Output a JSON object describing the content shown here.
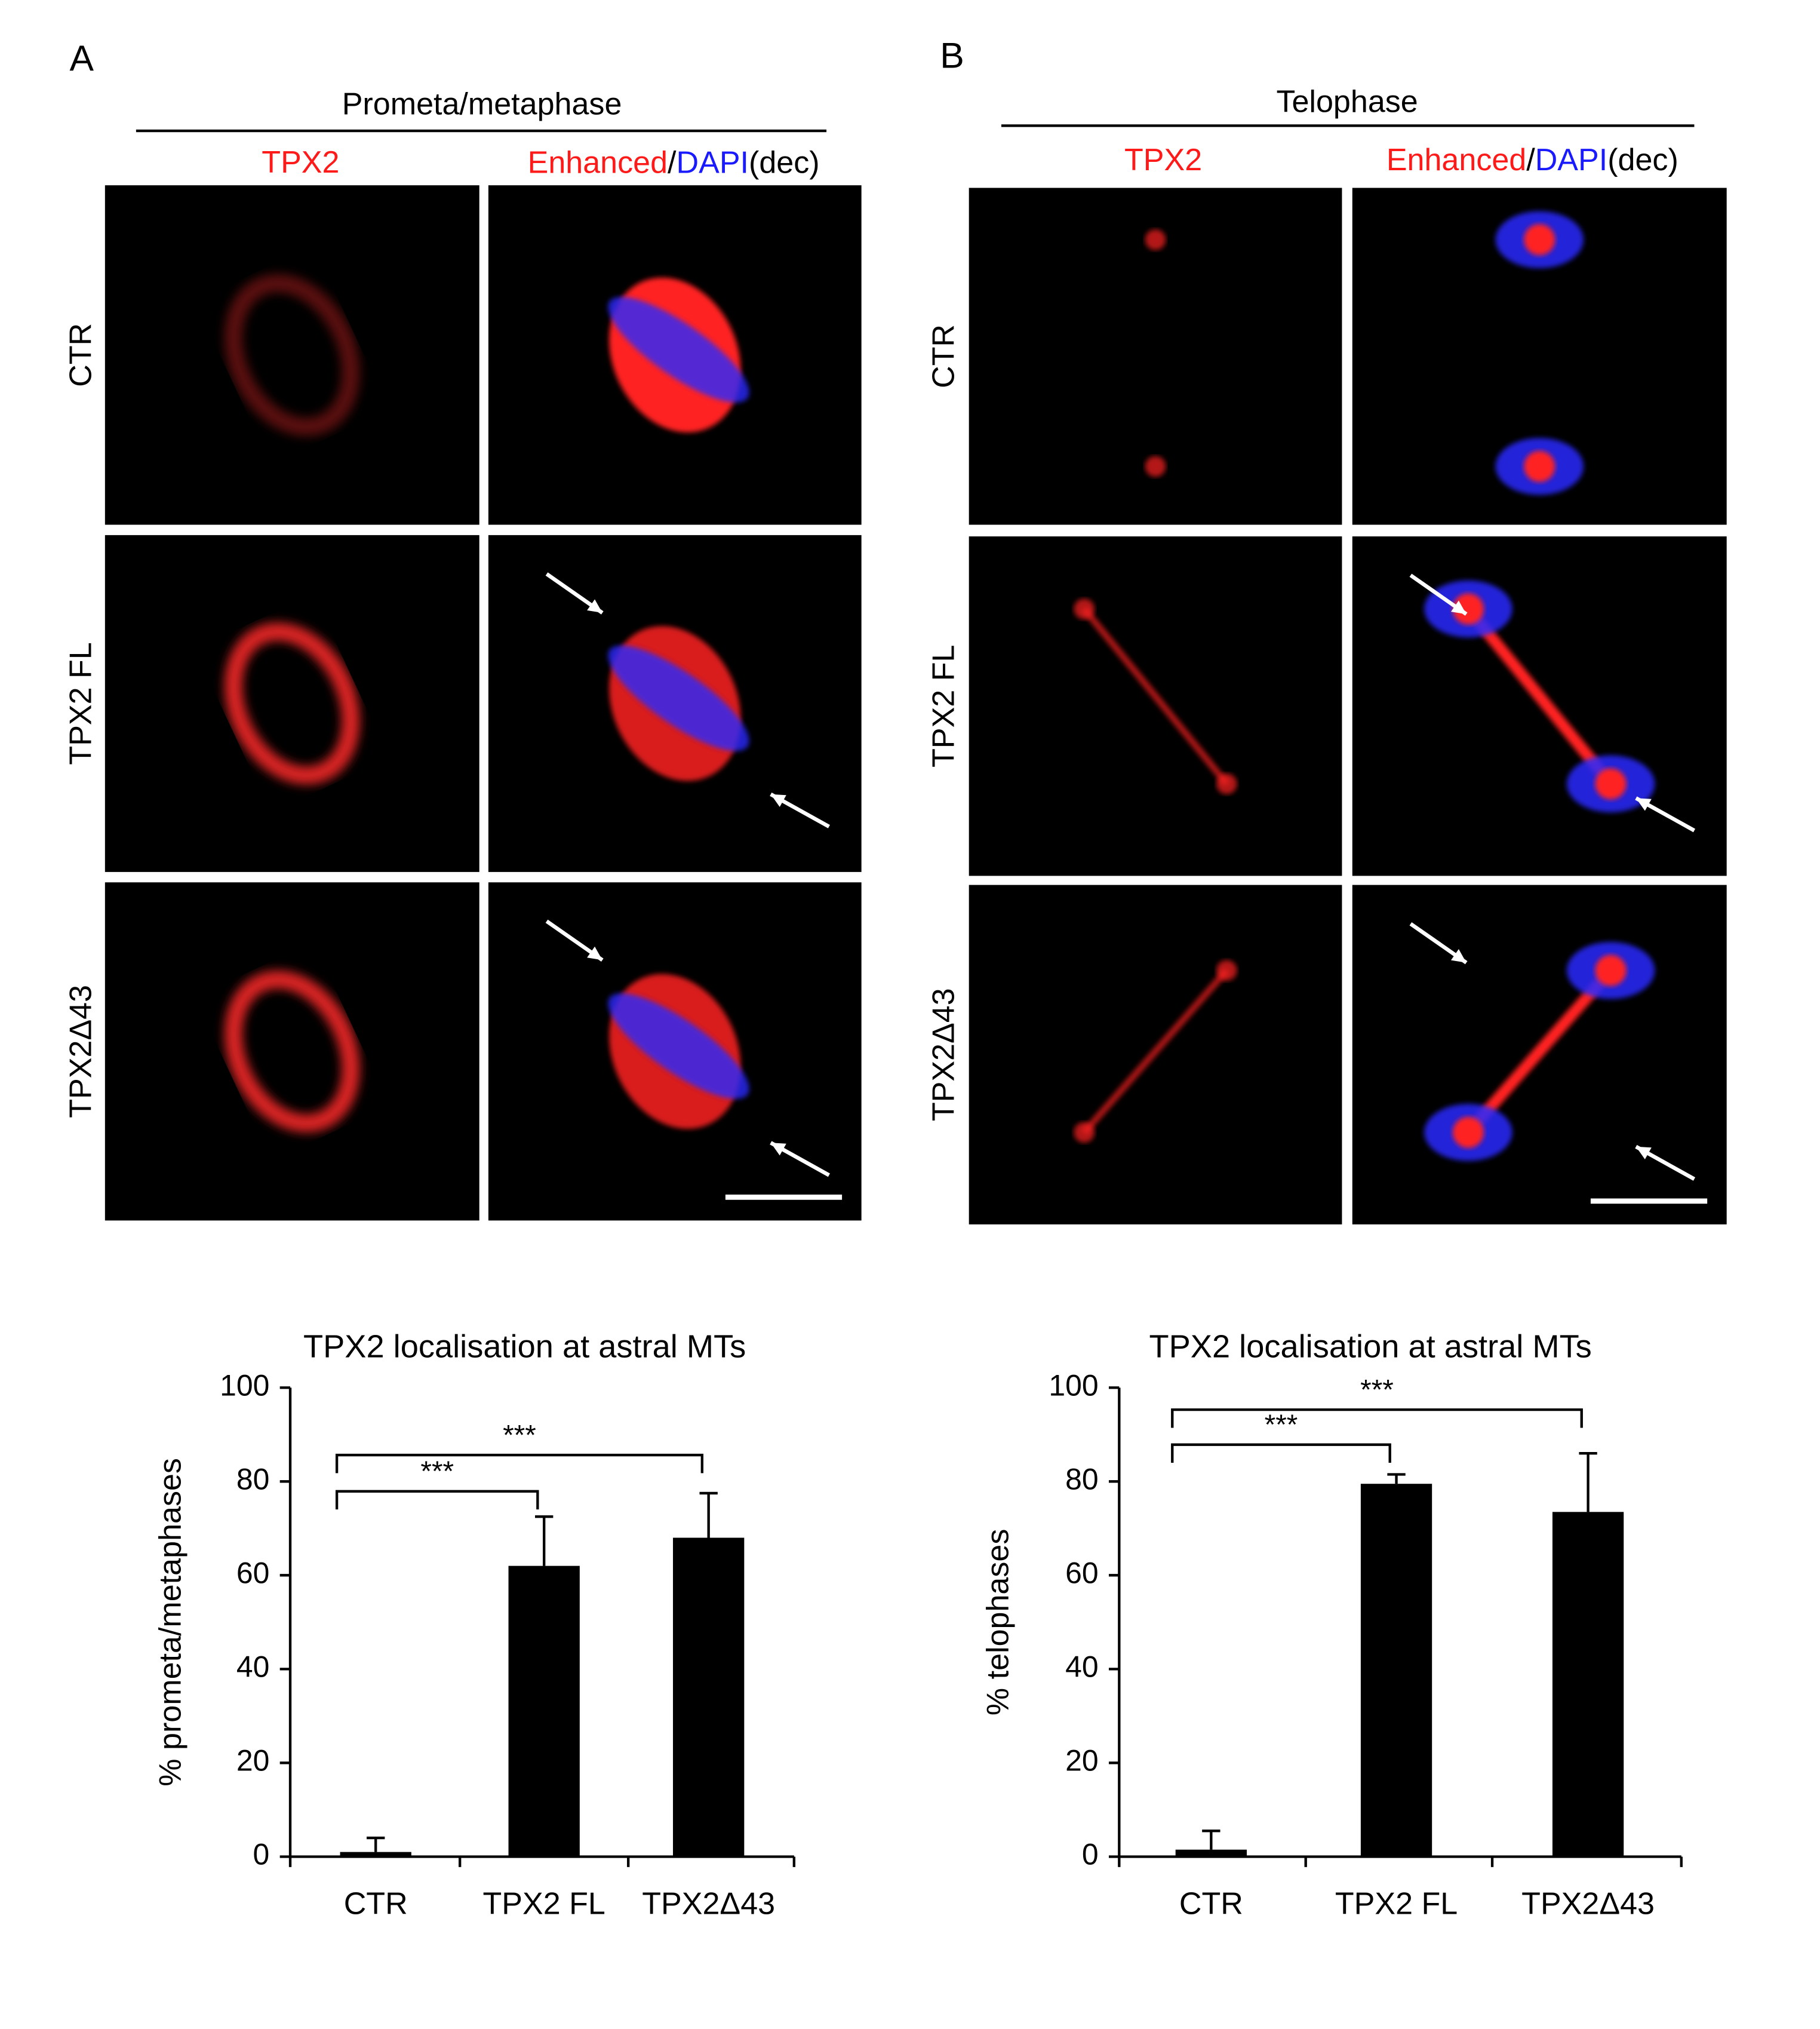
{
  "panels": [
    {
      "letter": "A",
      "header": "Prometa/metaphase",
      "column1": "TPX2",
      "column2": [
        "Enhanced",
        "/",
        "DAPI",
        "(dec)"
      ],
      "rows": [
        "CTR",
        "TPX2 FL",
        "TPX2Δ43"
      ]
    },
    {
      "letter": "B",
      "header": "Telophase",
      "column1": "TPX2",
      "column2": [
        "Enhanced",
        "/",
        "DAPI",
        "(dec)"
      ],
      "rows": [
        "CTR",
        "TPX2 FL",
        "TPX2Δ43"
      ]
    }
  ],
  "chart_data": [
    {
      "type": "bar",
      "title": "TPX2 localisation at astral MTs",
      "y_label": "% prometa/metaphases",
      "categories": [
        "CTR",
        "TPX2 FL",
        "TPX2Δ43"
      ],
      "values": [
        1,
        62,
        68
      ],
      "errors": [
        3,
        10.5,
        9.5
      ],
      "color": "#000000",
      "ylim": [
        0,
        100
      ],
      "yticks": [
        0,
        20,
        40,
        60,
        80,
        100
      ],
      "annotations": [
        "***",
        "***"
      ]
    },
    {
      "type": "bar",
      "title": "TPX2 localisation at astral MTs",
      "y_label": "% telophases",
      "categories": [
        "CTR",
        "TPX2 FL",
        "TPX2Δ43"
      ],
      "values": [
        1.5,
        79.5,
        73.5
      ],
      "errors": [
        4,
        2,
        12.5
      ],
      "color": "#000000",
      "ylim": [
        0,
        100
      ],
      "yticks": [
        0,
        20,
        40,
        60,
        80,
        100
      ],
      "annotations": [
        "***",
        "***"
      ]
    }
  ]
}
